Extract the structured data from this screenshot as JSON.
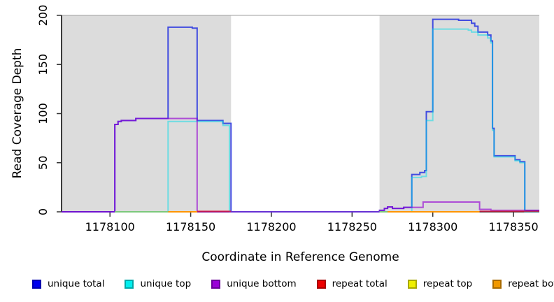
{
  "chart_data": {
    "type": "step_line",
    "title": "",
    "xlabel": "Coordinate in Reference Genome",
    "ylabel": "Read Coverage Depth",
    "x_range": [
      1178070,
      1178366
    ],
    "y_range": [
      0,
      200
    ],
    "x_ticks": [
      1178100,
      1178150,
      1178200,
      1178250,
      1178300,
      1178350
    ],
    "y_ticks": [
      0,
      50,
      100,
      150,
      200
    ],
    "grid": false,
    "shade_color": "#dcdcdc",
    "shaded_regions": [
      {
        "x1": 1178070,
        "x2": 1178175
      },
      {
        "x1": 1178267,
        "x2": 1178366
      }
    ],
    "series": [
      {
        "id": "unique-total",
        "name": "unique total",
        "color": "#2633e0",
        "opacity": 0.85,
        "segments": [
          [
            [
              1178070,
              0
            ],
            [
              1178103,
              89
            ],
            [
              1178105,
              92
            ],
            [
              1178107,
              93
            ],
            [
              1178116,
              95
            ],
            [
              1178136,
              188
            ],
            [
              1178151,
              187
            ],
            [
              1178154,
              93
            ],
            [
              1178170,
              90
            ],
            [
              1178175,
              0
            ],
            [
              1178267,
              1.5
            ],
            [
              1178270,
              3.5
            ],
            [
              1178272,
              5
            ],
            [
              1178275,
              3.5
            ],
            [
              1178282,
              4.5
            ],
            [
              1178287,
              38
            ],
            [
              1178292,
              40
            ],
            [
              1178295,
              42
            ],
            [
              1178296,
              102
            ],
            [
              1178300,
              196
            ],
            [
              1178316,
              195
            ],
            [
              1178324,
              192
            ],
            [
              1178326,
              189
            ],
            [
              1178328,
              183
            ],
            [
              1178334,
              180
            ],
            [
              1178336,
              174
            ],
            [
              1178337,
              85
            ],
            [
              1178338,
              57
            ],
            [
              1178351,
              53
            ],
            [
              1178354,
              51
            ],
            [
              1178357,
              1.4
            ],
            [
              1178366,
              1.4
            ]
          ]
        ]
      },
      {
        "id": "unique-top",
        "name": "unique top",
        "color": "#00dbe8",
        "opacity": 0.5,
        "segments": [
          [
            [
              1178103,
              0
            ],
            [
              1178136,
              92
            ],
            [
              1178170,
              88
            ],
            [
              1178174,
              0
            ],
            [
              1178287,
              35
            ],
            [
              1178293,
              36
            ],
            [
              1178296,
              93
            ],
            [
              1178300,
              186
            ],
            [
              1178322,
              185
            ],
            [
              1178324,
              183
            ],
            [
              1178328,
              180
            ],
            [
              1178334,
              177
            ],
            [
              1178336,
              172
            ],
            [
              1178337,
              83
            ],
            [
              1178338,
              56
            ],
            [
              1178351,
              52
            ],
            [
              1178354,
              50
            ],
            [
              1178357,
              0
            ],
            [
              1178366,
              0
            ]
          ]
        ]
      },
      {
        "id": "unique-bottom",
        "name": "unique bottom",
        "color": "#9400d3",
        "opacity": 0.65,
        "segments": [
          [
            [
              1178070,
              0
            ],
            [
              1178103,
              89
            ],
            [
              1178105,
              92
            ],
            [
              1178107,
              93
            ],
            [
              1178116,
              95
            ],
            [
              1178154,
              0
            ],
            [
              1178267,
              1.5
            ],
            [
              1178270,
              3.5
            ],
            [
              1178272,
              5
            ],
            [
              1178275,
              3.5
            ],
            [
              1178282,
              4.5
            ],
            [
              1178294,
              10
            ],
            [
              1178329,
              2.5
            ],
            [
              1178336,
              1.5
            ],
            [
              1178366,
              1.5
            ]
          ]
        ]
      },
      {
        "id": "repeat-total",
        "name": "repeat total",
        "color": "#dc143c",
        "opacity": 0.75,
        "segments": [
          [
            [
              1178154,
              0.5
            ],
            [
              1178175,
              0.5
            ]
          ],
          [
            [
              1178329,
              0.5
            ],
            [
              1178366,
              0.5
            ]
          ]
        ]
      },
      {
        "id": "repeat-top",
        "name": "repeat top",
        "color": "#eeee00",
        "opacity": 1,
        "segments": [
          [
            [
              1178136,
              0
            ],
            [
              1178154,
              0
            ]
          ]
        ]
      },
      {
        "id": "repeat-bottom",
        "name": "repeat bottom",
        "color": "#ff9500",
        "opacity": 1,
        "segments": [
          [
            [
              1178136,
              0
            ],
            [
              1178154,
              0
            ]
          ],
          [
            [
              1178272,
              0
            ],
            [
              1178329,
              0
            ]
          ]
        ]
      }
    ],
    "overlap_segments": [
      {
        "x1": 1178103,
        "x2": 1178136,
        "color": "#7cc87c"
      },
      {
        "x1": 1178267,
        "x2": 1178272,
        "color": "#7cc87c"
      }
    ]
  },
  "legend": {
    "items": [
      {
        "label": "unique total",
        "fill": "#0000ee",
        "border": "#0000b0",
        "icon": "swatch-unique-total-icon"
      },
      {
        "label": "unique top",
        "fill": "#00eeee",
        "border": "#00a8a8",
        "icon": "swatch-unique-top-icon"
      },
      {
        "label": "unique bottom",
        "fill": "#9a00d8",
        "border": "#6a0099",
        "icon": "swatch-unique-bottom-icon"
      },
      {
        "label": "repeat total",
        "fill": "#ee0000",
        "border": "#a80000",
        "icon": "swatch-repeat-total-icon"
      },
      {
        "label": "repeat top",
        "fill": "#f0f000",
        "border": "#a8a800",
        "icon": "swatch-repeat-top-icon"
      },
      {
        "label": "repeat bottom",
        "fill": "#f09800",
        "border": "#a86a00",
        "icon": "swatch-repeat-bottom-icon"
      }
    ]
  }
}
